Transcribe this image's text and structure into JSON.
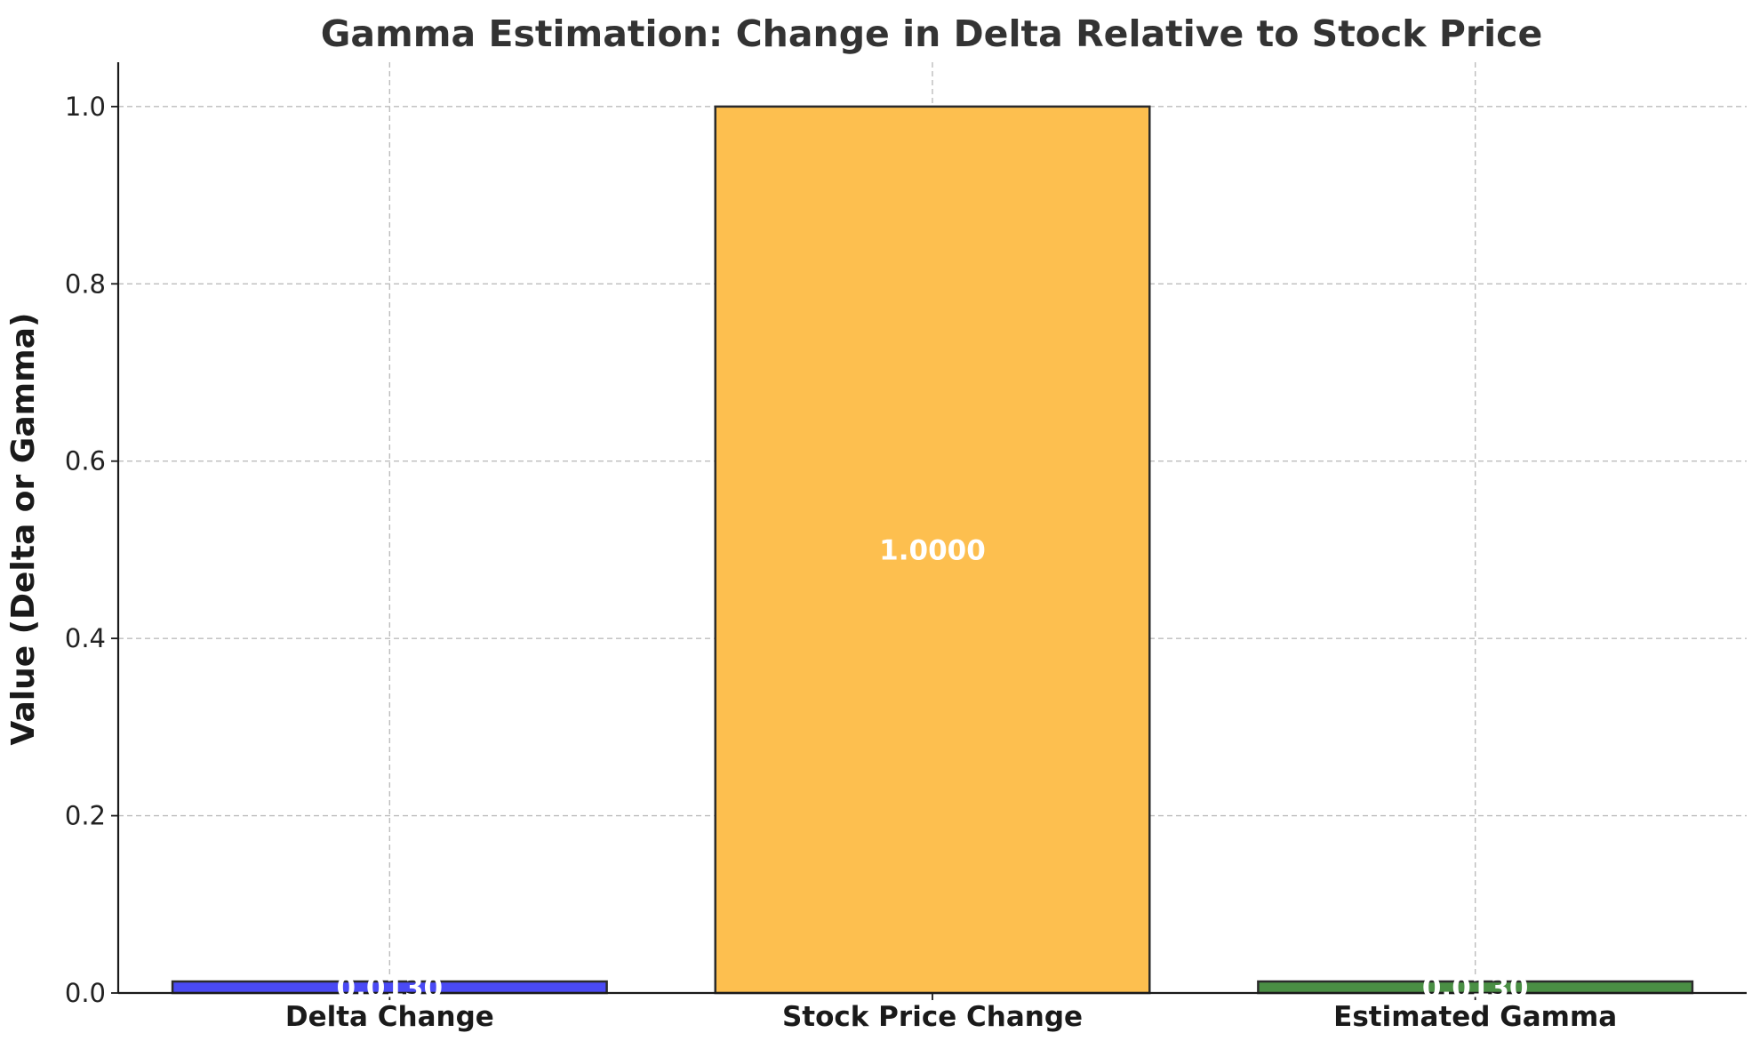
{
  "chart_data": {
    "type": "bar",
    "title": "Gamma Estimation: Change in Delta Relative to Stock Price",
    "xlabel": "",
    "ylabel": "Value (Delta or Gamma)",
    "categories": [
      "Delta Change",
      "Stock Price Change",
      "Estimated Gamma"
    ],
    "values": [
      0.013,
      1.0,
      0.013
    ],
    "data_labels": [
      "0.0130",
      "1.0000",
      "0.0130"
    ],
    "colors": [
      "#4a4af4",
      "#fdbf4f",
      "#4a8f44"
    ],
    "ylim": [
      0,
      1.05
    ],
    "yticks": [
      0.0,
      0.2,
      0.4,
      0.6,
      0.8,
      1.0
    ],
    "ytick_labels": [
      "0.0",
      "0.2",
      "0.4",
      "0.6",
      "0.8",
      "1.0"
    ],
    "grid": true,
    "legend": "none"
  }
}
